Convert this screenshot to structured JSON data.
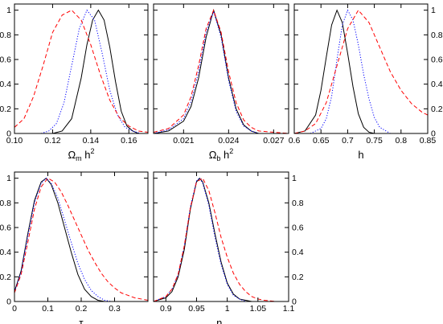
{
  "colors": {
    "solid": "#000000",
    "dotted": "#0000ff",
    "dashed": "#ff0000"
  },
  "chart_data": [
    {
      "type": "line",
      "xlabel": "Ωm h2",
      "xlabel_parts": {
        "base": "Ω",
        "sub": "m",
        "mid": " h",
        "sup": "2"
      },
      "xlim": [
        0.1,
        0.17
      ],
      "ylim": [
        0,
        1.05
      ],
      "xticks": [
        0.1,
        0.12,
        0.14,
        0.16
      ],
      "xtick_labels": [
        "0.10",
        "0.12",
        "0.14",
        "0.16"
      ],
      "yticks": [
        0,
        0.2,
        0.4,
        0.6,
        0.8,
        1
      ],
      "ytick_labels": [
        "0",
        "0.2",
        "0.4",
        "0.6",
        "0.8",
        "1"
      ],
      "ytick_side": "left",
      "series": [
        {
          "style": "solid",
          "x": [
            0.12,
            0.125,
            0.13,
            0.135,
            0.138,
            0.141,
            0.144,
            0.147,
            0.15,
            0.153,
            0.156,
            0.159,
            0.162,
            0.165,
            0.17
          ],
          "y": [
            0.0,
            0.02,
            0.12,
            0.45,
            0.72,
            0.92,
            1.0,
            0.92,
            0.7,
            0.42,
            0.18,
            0.06,
            0.02,
            0.0,
            0.0
          ]
        },
        {
          "style": "dotted",
          "x": [
            0.114,
            0.118,
            0.122,
            0.126,
            0.13,
            0.134,
            0.138,
            0.142,
            0.146,
            0.15,
            0.154,
            0.158,
            0.162,
            0.166,
            0.17
          ],
          "y": [
            0.0,
            0.02,
            0.08,
            0.25,
            0.55,
            0.85,
            1.0,
            0.92,
            0.65,
            0.35,
            0.15,
            0.05,
            0.02,
            0.0,
            0.0
          ]
        },
        {
          "style": "dashed",
          "x": [
            0.1,
            0.105,
            0.11,
            0.115,
            0.12,
            0.125,
            0.13,
            0.135,
            0.14,
            0.145,
            0.15,
            0.155,
            0.16,
            0.165,
            0.17
          ],
          "y": [
            0.05,
            0.12,
            0.3,
            0.55,
            0.82,
            0.96,
            1.0,
            0.92,
            0.72,
            0.48,
            0.27,
            0.13,
            0.06,
            0.02,
            0.01
          ]
        }
      ]
    },
    {
      "type": "line",
      "xlabel": "Ωb h2",
      "xlabel_parts": {
        "base": "Ω",
        "sub": "b",
        "mid": " h",
        "sup": "2"
      },
      "xlim": [
        0.019,
        0.028
      ],
      "ylim": [
        0,
        1.05
      ],
      "xticks": [
        0.021,
        0.024,
        0.027
      ],
      "xtick_labels": [
        "0.021",
        "0.024",
        "0.027"
      ],
      "yticks": [
        0,
        0.2,
        0.4,
        0.6,
        0.8,
        1
      ],
      "ytick_labels": [],
      "ytick_side": "none",
      "series": [
        {
          "style": "solid",
          "x": [
            0.019,
            0.02,
            0.021,
            0.0215,
            0.022,
            0.0225,
            0.023,
            0.0235,
            0.024,
            0.0245,
            0.025,
            0.0255,
            0.026,
            0.027,
            0.028
          ],
          "y": [
            0.0,
            0.02,
            0.1,
            0.22,
            0.45,
            0.78,
            1.0,
            0.8,
            0.45,
            0.2,
            0.07,
            0.02,
            0.0,
            0.0,
            0.0
          ]
        },
        {
          "style": "dotted",
          "x": [
            0.019,
            0.02,
            0.021,
            0.0215,
            0.022,
            0.0225,
            0.023,
            0.0235,
            0.024,
            0.0245,
            0.025,
            0.0255,
            0.026,
            0.027,
            0.028
          ],
          "y": [
            0.0,
            0.03,
            0.12,
            0.26,
            0.5,
            0.82,
            0.99,
            0.78,
            0.43,
            0.18,
            0.06,
            0.02,
            0.0,
            0.0,
            0.0
          ]
        },
        {
          "style": "dashed",
          "x": [
            0.019,
            0.02,
            0.021,
            0.0215,
            0.022,
            0.0225,
            0.023,
            0.0235,
            0.024,
            0.0245,
            0.025,
            0.0255,
            0.026,
            0.027,
            0.028
          ],
          "y": [
            0.01,
            0.04,
            0.15,
            0.3,
            0.55,
            0.85,
            1.0,
            0.82,
            0.5,
            0.25,
            0.11,
            0.05,
            0.02,
            0.01,
            0.0
          ]
        }
      ]
    },
    {
      "type": "line",
      "xlabel": "h",
      "xlabel_parts": {
        "base": "h",
        "sub": "",
        "mid": "",
        "sup": ""
      },
      "xlim": [
        0.6,
        0.85
      ],
      "ylim": [
        0,
        1.05
      ],
      "xticks": [
        0.6,
        0.65,
        0.7,
        0.75,
        0.8,
        0.85
      ],
      "xtick_labels": [
        "0.6",
        "0.65",
        "0.7",
        "0.75",
        "0.8",
        "0.85"
      ],
      "yticks": [
        0,
        0.2,
        0.4,
        0.6,
        0.8,
        1
      ],
      "ytick_labels": [
        "0",
        "0.2",
        "0.4",
        "0.6",
        "0.8",
        "1"
      ],
      "ytick_side": "right",
      "series": [
        {
          "style": "solid",
          "x": [
            0.6,
            0.62,
            0.64,
            0.65,
            0.66,
            0.67,
            0.68,
            0.69,
            0.7,
            0.71,
            0.72,
            0.73,
            0.74,
            0.75,
            0.85
          ],
          "y": [
            0.0,
            0.02,
            0.15,
            0.35,
            0.62,
            0.88,
            1.0,
            0.9,
            0.65,
            0.38,
            0.16,
            0.05,
            0.01,
            0.0,
            0.0
          ]
        },
        {
          "style": "dotted",
          "x": [
            0.63,
            0.65,
            0.66,
            0.67,
            0.68,
            0.69,
            0.7,
            0.71,
            0.72,
            0.73,
            0.74,
            0.75,
            0.76,
            0.78,
            0.85
          ],
          "y": [
            0.0,
            0.04,
            0.12,
            0.3,
            0.6,
            0.88,
            1.0,
            0.92,
            0.72,
            0.48,
            0.28,
            0.13,
            0.05,
            0.0,
            0.0
          ]
        },
        {
          "style": "dashed",
          "x": [
            0.6,
            0.62,
            0.64,
            0.66,
            0.68,
            0.7,
            0.72,
            0.74,
            0.76,
            0.78,
            0.8,
            0.82,
            0.84,
            0.85
          ],
          "y": [
            0.0,
            0.02,
            0.08,
            0.25,
            0.55,
            0.85,
            1.0,
            0.9,
            0.7,
            0.5,
            0.35,
            0.24,
            0.17,
            0.15
          ]
        }
      ]
    },
    {
      "type": "line",
      "xlabel": "τ",
      "xlabel_parts": {
        "base": "τ",
        "sub": "",
        "mid": "",
        "sup": ""
      },
      "xlim": [
        0,
        0.4
      ],
      "ylim": [
        0,
        1.05
      ],
      "xticks": [
        0,
        0.1,
        0.2,
        0.3
      ],
      "xtick_labels": [
        "0",
        "0.1",
        "0.2",
        "0.3"
      ],
      "yticks": [
        0,
        0.2,
        0.4,
        0.6,
        0.8,
        1
      ],
      "ytick_labels": [
        "0",
        "0.2",
        "0.4",
        "0.6",
        "0.8",
        "1"
      ],
      "ytick_side": "left",
      "series": [
        {
          "style": "solid",
          "x": [
            0,
            0.02,
            0.04,
            0.06,
            0.08,
            0.095,
            0.11,
            0.13,
            0.15,
            0.17,
            0.19,
            0.21,
            0.23,
            0.25,
            0.27,
            0.4
          ],
          "y": [
            0.08,
            0.25,
            0.55,
            0.82,
            0.97,
            1.0,
            0.95,
            0.8,
            0.6,
            0.4,
            0.22,
            0.1,
            0.04,
            0.01,
            0.0,
            0.0
          ]
        },
        {
          "style": "dotted",
          "x": [
            0,
            0.02,
            0.04,
            0.06,
            0.08,
            0.095,
            0.11,
            0.13,
            0.15,
            0.17,
            0.19,
            0.21,
            0.23,
            0.25,
            0.27,
            0.29,
            0.4
          ],
          "y": [
            0.08,
            0.24,
            0.53,
            0.8,
            0.96,
            1.0,
            0.96,
            0.84,
            0.66,
            0.48,
            0.31,
            0.18,
            0.09,
            0.04,
            0.01,
            0.0,
            0.0
          ]
        },
        {
          "style": "dashed",
          "x": [
            0,
            0.02,
            0.04,
            0.06,
            0.08,
            0.1,
            0.12,
            0.14,
            0.16,
            0.18,
            0.2,
            0.22,
            0.24,
            0.26,
            0.28,
            0.3,
            0.32,
            0.34,
            0.36,
            0.38,
            0.4
          ],
          "y": [
            0.07,
            0.22,
            0.48,
            0.75,
            0.93,
            1.0,
            0.97,
            0.89,
            0.78,
            0.66,
            0.54,
            0.42,
            0.32,
            0.23,
            0.16,
            0.11,
            0.07,
            0.05,
            0.03,
            0.02,
            0.01
          ]
        }
      ]
    },
    {
      "type": "line",
      "xlabel": "ns",
      "xlabel_parts": {
        "base": "n",
        "sub": "s",
        "mid": "",
        "sup": ""
      },
      "xlim": [
        0.88,
        1.1
      ],
      "ylim": [
        0,
        1.05
      ],
      "xticks": [
        0.9,
        0.95,
        1.0,
        1.05,
        1.1
      ],
      "xtick_labels": [
        "0.9",
        "0.95",
        "1",
        "1.05",
        "1.1"
      ],
      "yticks": [
        0,
        0.2,
        0.4,
        0.6,
        0.8,
        1
      ],
      "ytick_labels": [
        "0",
        "0.2",
        "0.4",
        "0.6",
        "0.8",
        "1"
      ],
      "ytick_side": "right",
      "series": [
        {
          "style": "solid",
          "x": [
            0.88,
            0.9,
            0.91,
            0.92,
            0.93,
            0.94,
            0.95,
            0.955,
            0.96,
            0.97,
            0.98,
            0.99,
            1.0,
            1.01,
            1.02,
            1.03,
            1.04,
            1.1
          ],
          "y": [
            0.0,
            0.03,
            0.08,
            0.2,
            0.42,
            0.75,
            0.97,
            1.0,
            0.97,
            0.8,
            0.55,
            0.32,
            0.15,
            0.06,
            0.02,
            0.01,
            0.0,
            0.0
          ]
        },
        {
          "style": "dotted",
          "x": [
            0.88,
            0.9,
            0.91,
            0.92,
            0.93,
            0.94,
            0.95,
            0.955,
            0.96,
            0.97,
            0.98,
            0.99,
            1.0,
            1.01,
            1.02,
            1.03,
            1.04,
            1.1
          ],
          "y": [
            0.0,
            0.04,
            0.1,
            0.22,
            0.45,
            0.77,
            0.98,
            1.0,
            0.96,
            0.78,
            0.52,
            0.3,
            0.14,
            0.05,
            0.02,
            0.0,
            0.0,
            0.0
          ]
        },
        {
          "style": "dashed",
          "x": [
            0.88,
            0.9,
            0.91,
            0.92,
            0.93,
            0.94,
            0.95,
            0.96,
            0.97,
            0.98,
            0.99,
            1.0,
            1.01,
            1.02,
            1.03,
            1.04,
            1.05,
            1.06,
            1.08,
            1.1
          ],
          "y": [
            0.0,
            0.04,
            0.1,
            0.22,
            0.45,
            0.76,
            0.97,
            1.0,
            0.9,
            0.72,
            0.52,
            0.36,
            0.23,
            0.14,
            0.08,
            0.04,
            0.02,
            0.01,
            0.0,
            0.0
          ]
        }
      ]
    }
  ]
}
